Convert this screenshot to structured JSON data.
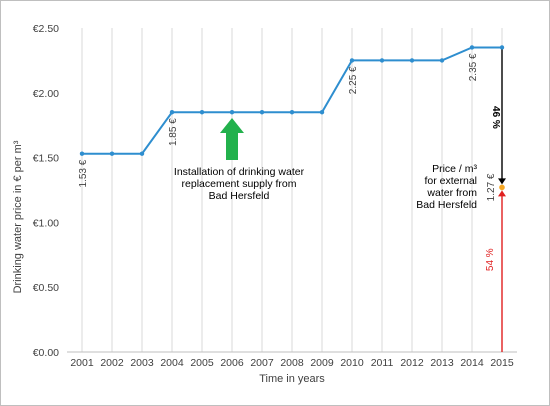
{
  "chart_data": {
    "type": "line",
    "xlabel": "Time in years",
    "ylabel": "Drinking water price in € per m³",
    "ylim": [
      0,
      2.5
    ],
    "y_ticks": [
      "€0.00",
      "€0.50",
      "€1.00",
      "€1.50",
      "€2.00",
      "€2.50"
    ],
    "y_tick_values": [
      0,
      0.5,
      1.0,
      1.5,
      2.0,
      2.5
    ],
    "categories": [
      "2001",
      "2002",
      "2003",
      "2004",
      "2005",
      "2006",
      "2007",
      "2008",
      "2009",
      "2010",
      "2011",
      "2012",
      "2013",
      "2014",
      "2015"
    ],
    "values": [
      1.53,
      1.53,
      1.53,
      1.85,
      1.85,
      1.85,
      1.85,
      1.85,
      1.85,
      2.25,
      2.25,
      2.25,
      2.25,
      2.35,
      2.35
    ],
    "grid": "vertical",
    "series_color": "#2e8ecf",
    "point_labels": [
      {
        "year": "2001",
        "value": 1.53,
        "text": "1.53 €"
      },
      {
        "year": "2004",
        "value": 1.85,
        "text": "1.85 €"
      },
      {
        "year": "2010",
        "value": 2.25,
        "text": "2.25 €"
      },
      {
        "year": "2014",
        "value": 2.35,
        "text": "2.35 €"
      }
    ],
    "external_price": {
      "year": "2015",
      "value": 1.27,
      "text": "1.27 €",
      "color": "#f5a623"
    },
    "annotations": {
      "installation_text": [
        "Installation of drinking water",
        "replacement supply from",
        "Bad Hersfeld"
      ],
      "installation_year": "2006",
      "installation_arrow_color": "#22b14c",
      "price_text": [
        "Price / m³",
        "for external",
        "water from",
        "Bad Hersfeld"
      ],
      "pct_top": "46 %",
      "pct_top_color": "#000000",
      "pct_bottom": "54 %",
      "pct_bottom_color": "#e02020"
    }
  }
}
